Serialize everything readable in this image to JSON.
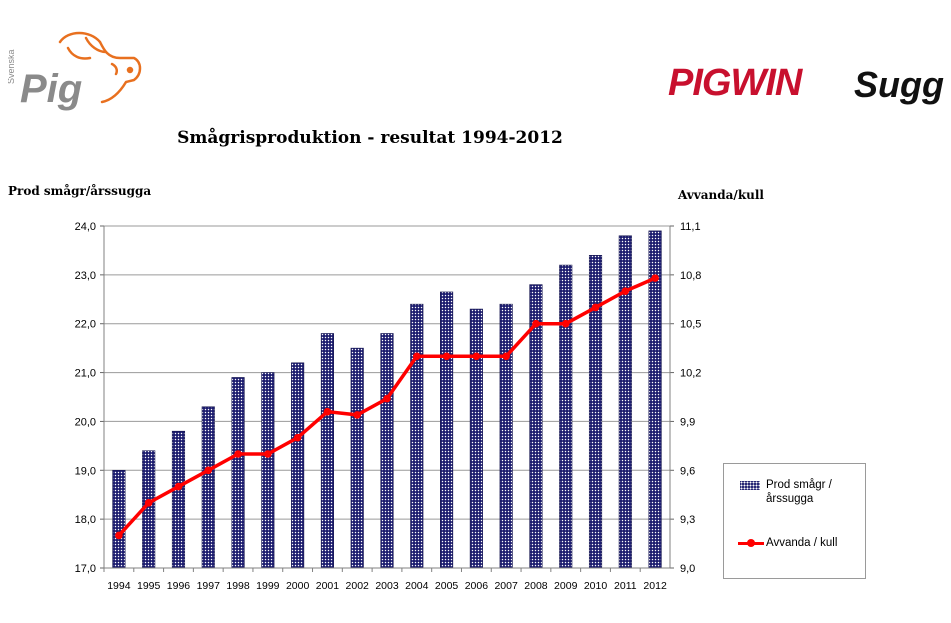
{
  "logo_left": {
    "small_text": "Svenska",
    "word": "Pig",
    "colors": {
      "text": "#8a8a8a",
      "pig": "#e8701f"
    }
  },
  "logo_right": {
    "brand": "PIGWIN",
    "suffix": "Sugg",
    "colors": {
      "brand": "#c8102e",
      "suffix": "#111111"
    }
  },
  "chart_data": {
    "type": "bar",
    "title": "Smågrisproduktion - resultat 1994-2012",
    "categories": [
      "1994",
      "1995",
      "1996",
      "1997",
      "1998",
      "1999",
      "2000",
      "2001",
      "2002",
      "2003",
      "2004",
      "2005",
      "2006",
      "2007",
      "2008",
      "2009",
      "2010",
      "2011",
      "2012"
    ],
    "series": [
      {
        "name": "Prod smågr / årssugga",
        "type": "bar",
        "axis": "left",
        "color": "#1c1c6e",
        "values": [
          19.0,
          19.4,
          19.8,
          20.3,
          20.9,
          21.0,
          21.2,
          21.8,
          21.5,
          21.8,
          22.4,
          22.65,
          22.3,
          22.4,
          22.8,
          23.2,
          23.4,
          23.8,
          23.9
        ]
      },
      {
        "name": "Avvanda / kull",
        "type": "line",
        "axis": "right",
        "color": "#ff0000",
        "values": [
          9.2,
          9.4,
          9.5,
          9.6,
          9.7,
          9.7,
          9.8,
          9.96,
          9.94,
          10.04,
          10.3,
          10.3,
          10.3,
          10.3,
          10.5,
          10.5,
          10.6,
          10.7,
          10.78
        ]
      }
    ],
    "ylabel_left": "Prod smågr/årssugga",
    "ylabel_right": "Avvanda/kull",
    "ylim_left": [
      17.0,
      24.0
    ],
    "ylim_right": [
      9.0,
      11.1
    ],
    "yticks_left": [
      "17,0",
      "18,0",
      "19,0",
      "20,0",
      "21,0",
      "22,0",
      "23,0",
      "24,0"
    ],
    "yticks_right": [
      "9,0",
      "9,3",
      "9,6",
      "9,9",
      "10,2",
      "10,5",
      "10,8",
      "11,1"
    ],
    "grid": true,
    "legend_position": "bottom-right"
  }
}
